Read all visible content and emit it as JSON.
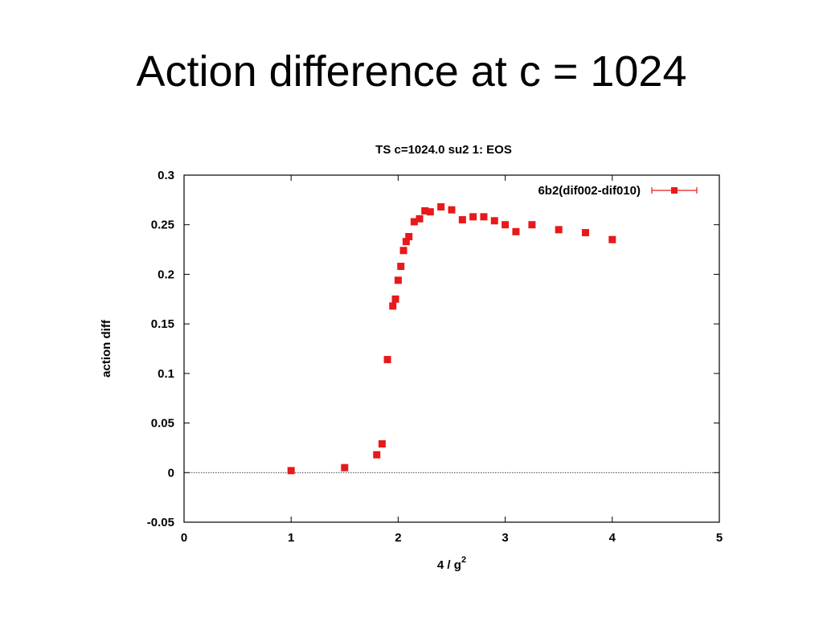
{
  "slide": {
    "title": "Action difference at c = 1024"
  },
  "chart_data": {
    "type": "scatter",
    "title": "TS c=1024.0 su2 1: EOS",
    "xlabel": "4 / g",
    "xlabel_sup": "2",
    "ylabel": "action diff",
    "xlim": [
      0,
      5
    ],
    "ylim": [
      -0.05,
      0.3
    ],
    "x_ticks": [
      "0",
      "1",
      "2",
      "3",
      "4",
      "5"
    ],
    "y_ticks": [
      "0.3",
      "0.25",
      "0.2",
      "0.15",
      "0.1",
      "0.05",
      "0",
      "-0.05"
    ],
    "zero_line": true,
    "grid": false,
    "legend_position": "top-right",
    "series": [
      {
        "name": "6b2(dif002-dif010)",
        "color": "#e8191b",
        "marker": "square",
        "x": [
          1.0,
          1.5,
          1.8,
          1.85,
          1.9,
          1.95,
          1.975,
          2.0,
          2.025,
          2.05,
          2.075,
          2.1,
          2.15,
          2.2,
          2.25,
          2.3,
          2.4,
          2.5,
          2.6,
          2.7,
          2.8,
          2.9,
          3.0,
          3.1,
          3.25,
          3.5,
          3.75,
          4.0
        ],
        "y": [
          0.002,
          0.005,
          0.018,
          0.029,
          0.114,
          0.168,
          0.175,
          0.194,
          0.208,
          0.224,
          0.233,
          0.238,
          0.253,
          0.256,
          0.264,
          0.263,
          0.268,
          0.265,
          0.255,
          0.258,
          0.258,
          0.254,
          0.25,
          0.243,
          0.25,
          0.245,
          0.242,
          0.235
        ]
      }
    ]
  }
}
